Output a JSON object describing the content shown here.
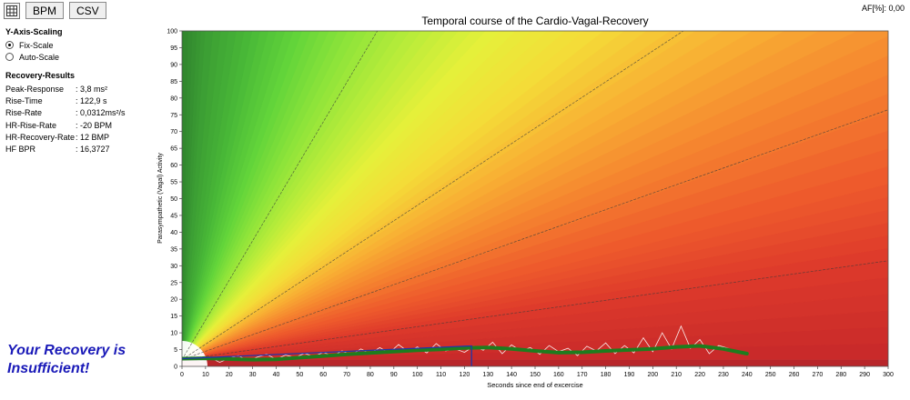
{
  "toolbar": {
    "bpm_label": "BPM",
    "csv_label": "CSV"
  },
  "af_label": "AF[%]: 0,00",
  "y_axis_scaling": {
    "title": "Y-Axis-Scaling",
    "options": [
      {
        "label": "Fix-Scale",
        "selected": true
      },
      {
        "label": "Auto-Scale",
        "selected": false
      }
    ]
  },
  "recovery_results": {
    "title": "Recovery-Results",
    "rows": [
      {
        "label": "Peak-Response",
        "value": ": 3,8 ms²"
      },
      {
        "label": "Rise-Time",
        "value": ": 122,9 s"
      },
      {
        "label": "Rise-Rate",
        "value": ": 0,0312ms²/s"
      },
      {
        "label": "HR-Rise-Rate",
        "value": ": -20 BPM"
      },
      {
        "label": "HR-Recovery-Rate",
        "value": ": 12 BMP"
      },
      {
        "label": "HF BPR",
        "value": ": 16,3727"
      }
    ]
  },
  "verdict": {
    "line1": "Your Recovery is",
    "line2": "Insufficient!"
  },
  "colors": {
    "verdict": "#1a1ab8",
    "trend": "#1e7d1e",
    "rise": "#1f35a8",
    "signal": "#ffffff"
  },
  "chart_data": {
    "type": "line",
    "title": "Temporal course of the Cardio-Vagal-Recovery",
    "xlabel": "Seconds since end of excercise",
    "ylabel": "Parasympathetic (Vagal) Activity",
    "xlim": [
      0,
      300
    ],
    "ylim": [
      0,
      100
    ],
    "xticks": [
      0,
      10,
      20,
      30,
      40,
      50,
      60,
      70,
      80,
      90,
      100,
      110,
      120,
      130,
      140,
      150,
      160,
      170,
      180,
      190,
      200,
      210,
      220,
      230,
      240,
      250,
      260,
      270,
      280,
      290,
      300
    ],
    "yticks": [
      0,
      5,
      10,
      15,
      20,
      25,
      30,
      35,
      40,
      45,
      50,
      55,
      60,
      65,
      70,
      75,
      80,
      85,
      90,
      95,
      100
    ],
    "reference_lines": [
      {
        "x": [
          0,
          300
        ],
        "y": [
          2,
          31.5
        ]
      },
      {
        "x": [
          0,
          300
        ],
        "y": [
          2,
          76.5
        ]
      },
      {
        "x": [
          0,
          213
        ],
        "y": [
          2,
          100
        ]
      },
      {
        "x": [
          0,
          83
        ],
        "y": [
          2,
          100
        ]
      }
    ],
    "series": [
      {
        "role": "trend",
        "x": [
          0,
          10,
          20,
          30,
          40,
          50,
          60,
          70,
          80,
          90,
          100,
          110,
          120,
          130,
          140,
          150,
          160,
          170,
          180,
          190,
          200,
          210,
          220,
          230,
          240
        ],
        "y": [
          2.3,
          2.4,
          2.2,
          2.0,
          2.1,
          2.6,
          3.1,
          3.6,
          4.0,
          4.4,
          4.8,
          5.1,
          5.5,
          5.6,
          5.2,
          4.6,
          4.1,
          4.2,
          4.6,
          4.9,
          5.2,
          5.8,
          6.1,
          5.2,
          3.8
        ]
      },
      {
        "role": "rise",
        "x": [
          0,
          123,
          123
        ],
        "y": [
          2.3,
          6.1,
          0
        ]
      },
      {
        "role": "signal",
        "x": [
          0,
          4,
          8,
          12,
          16,
          20,
          24,
          28,
          32,
          36,
          40,
          44,
          48,
          52,
          56,
          60,
          64,
          68,
          72,
          76,
          80,
          84,
          88,
          92,
          96,
          100,
          104,
          108,
          112,
          116,
          120,
          124,
          128,
          132,
          136,
          140,
          144,
          148,
          152,
          156,
          160,
          164,
          168,
          172,
          176,
          180,
          184,
          188,
          192,
          196,
          200,
          204,
          208,
          212,
          216,
          220,
          224,
          228,
          232,
          236,
          240
        ],
        "y": [
          2.0,
          3.0,
          1.5,
          2.6,
          1.2,
          2.4,
          3.2,
          1.6,
          2.8,
          3.6,
          2.1,
          3.4,
          2.6,
          3.9,
          2.9,
          4.2,
          3.1,
          4.6,
          3.4,
          5.2,
          3.8,
          5.6,
          4.0,
          6.5,
          4.4,
          5.8,
          4.0,
          6.8,
          4.6,
          5.2,
          4.2,
          6.0,
          4.8,
          7.2,
          3.8,
          6.4,
          4.6,
          5.6,
          3.6,
          6.2,
          4.4,
          5.4,
          3.2,
          6.0,
          4.6,
          7.0,
          3.8,
          6.2,
          4.0,
          8.5,
          4.4,
          10.0,
          5.2,
          12.0,
          5.4,
          8.0,
          3.8,
          6.2,
          5.4,
          4.2,
          3.6
        ]
      }
    ]
  }
}
